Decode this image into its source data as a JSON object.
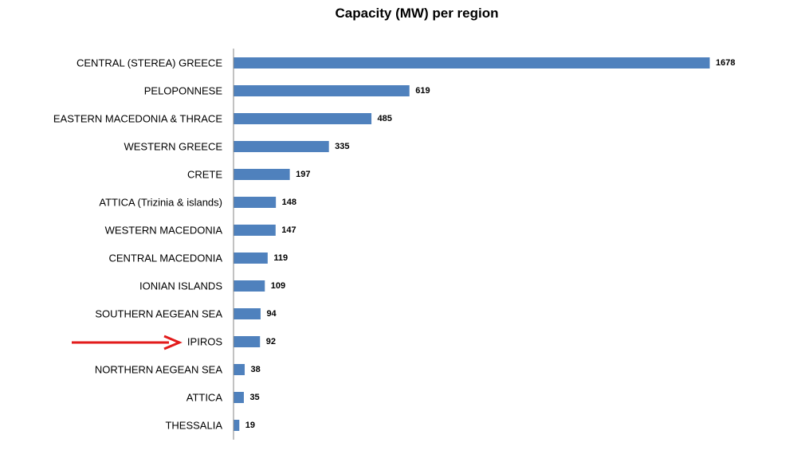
{
  "chart_data": {
    "type": "bar",
    "orientation": "horizontal",
    "title": "Capacity (MW) per region",
    "xlabel": "",
    "ylabel": "",
    "xlim": [
      0,
      1678
    ],
    "grid": false,
    "legend": "none",
    "categories": [
      "CENTRAL (STEREA) GREECE",
      "PELOPONNESE",
      "EASTERN MACEDONIA & THRACE",
      "WESTERN GREECE",
      "CRETE",
      "ATTICA (Trizinia & islands)",
      "WESTERN MACEDONIA",
      "CENTRAL MACEDONIA",
      "IONIAN ISLANDS",
      "SOUTHERN AEGEAN SEA",
      "IPIROS",
      "NORTHERN AEGEAN SEA",
      "ATTICA",
      "THESSALIA"
    ],
    "values": [
      1678,
      619,
      485,
      335,
      197,
      148,
      147,
      119,
      109,
      94,
      92,
      38,
      35,
      19
    ],
    "series": [
      {
        "name": "Capacity (MW)",
        "values": [
          1678,
          619,
          485,
          335,
          197,
          148,
          147,
          119,
          109,
          94,
          92,
          38,
          35,
          19
        ]
      }
    ],
    "annotations": [
      {
        "type": "arrow",
        "target_category": "IPIROS",
        "color": "#e21b1b"
      }
    ]
  },
  "colors": {
    "bar": "#4f81bd",
    "axis": "#868686",
    "arrow": "#e21b1b",
    "text": "#000000"
  }
}
